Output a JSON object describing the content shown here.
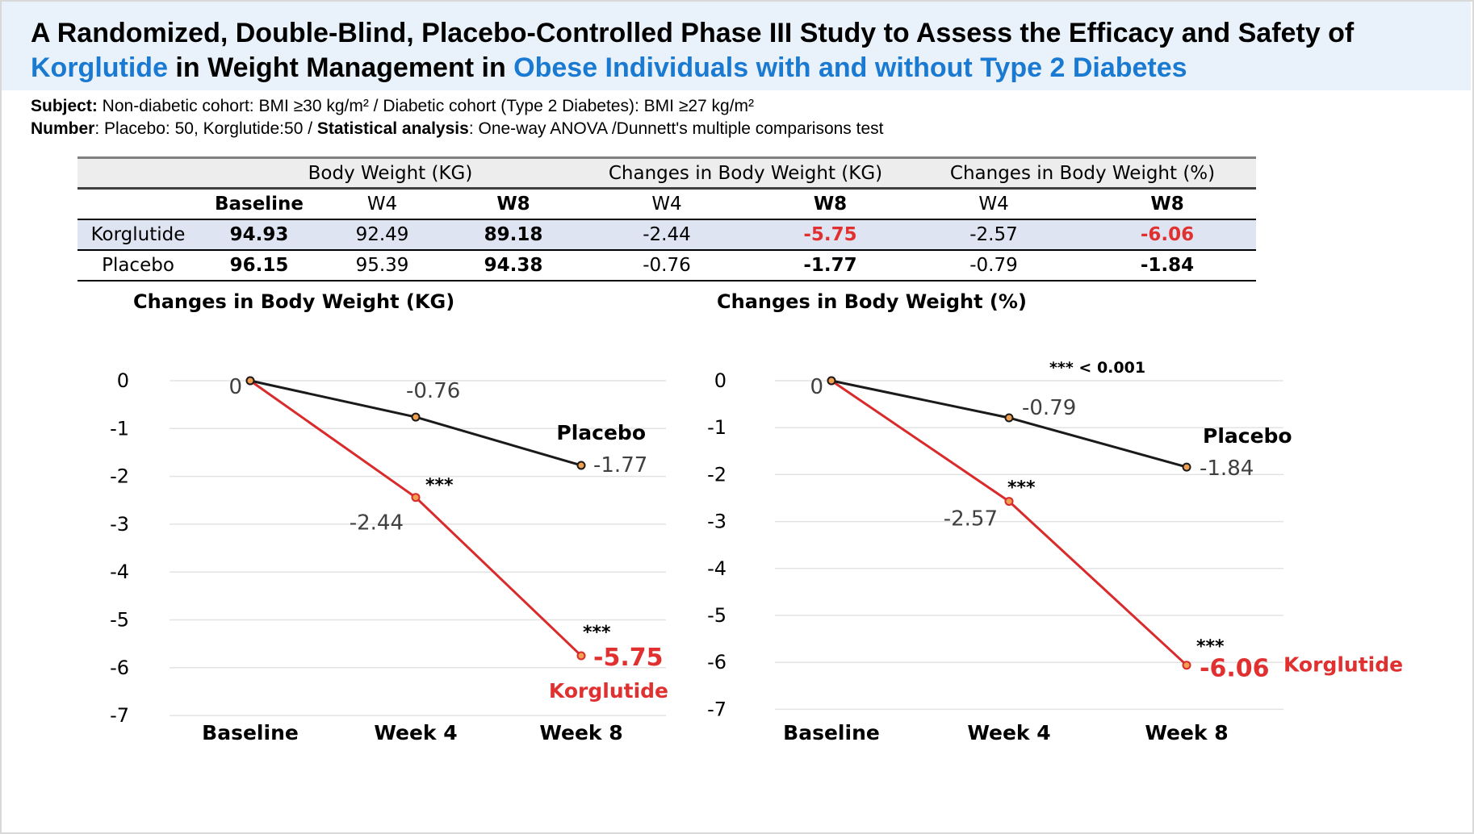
{
  "title": {
    "line1": "A Randomized, Double-Blind, Placebo-Controlled Phase III Study to Assess the Efficacy and Safety of",
    "line2_drug": "Korglutide",
    "line2_mid": " in Weight Management in ",
    "line2_pop": "Obese Individuals with and without Type 2 Diabetes"
  },
  "info": {
    "subject_label": "Subject:",
    "subject_text": " Non-diabetic cohort: BMI ≥30 kg/m² / Diabetic cohort (Type 2 Diabetes): BMI ≥27 kg/m²",
    "number_label": "Number",
    "number_text": ": Placebo: 50, Korglutide:50     /   ",
    "stat_label": "Statistical analysis",
    "stat_text": ": One-way ANOVA /Dunnett's multiple comparisons test"
  },
  "table": {
    "groups": [
      "Body Weight (KG)",
      "Changes in Body Weight (KG)",
      "Changes in Body Weight (%)"
    ],
    "subheaders": [
      "Baseline",
      "W4",
      "W8",
      "W4",
      "W8",
      "W4",
      "W8"
    ],
    "rows": [
      {
        "name": "Korglutide",
        "values": [
          "94.93",
          "92.49",
          "89.18",
          "-2.44",
          "-5.75",
          "-2.57",
          "-6.06"
        ]
      },
      {
        "name": "Placebo",
        "values": [
          "96.15",
          "95.39",
          "94.38",
          "-0.76",
          "-1.77",
          "-0.79",
          "-1.84"
        ]
      }
    ]
  },
  "colors": {
    "korglutide": "#d92b2b",
    "placebo": "#1a1a1a",
    "accent": "#1a7ad1",
    "marker_fill": "#f0a050"
  },
  "significance_note": "*** < 0.001",
  "chart_data": [
    {
      "type": "line",
      "title": "Changes in Body Weight (KG)",
      "categories": [
        "Baseline",
        "Week 4",
        "Week 8"
      ],
      "ylim": [
        -7,
        0
      ],
      "yticks": [
        "0",
        "-1",
        "-2",
        "-3",
        "-4",
        "-5",
        "-6",
        "-7"
      ],
      "grid": true,
      "series": [
        {
          "name": "Placebo",
          "values": [
            0,
            -0.76,
            -1.77
          ],
          "labels": [
            "0",
            "-0.76",
            "-1.77"
          ],
          "stars": [
            "",
            "",
            ""
          ]
        },
        {
          "name": "Korglutide",
          "values": [
            0,
            -2.44,
            -5.75
          ],
          "labels": [
            "",
            "-2.44",
            "-5.75"
          ],
          "stars": [
            "",
            "***",
            "***"
          ]
        }
      ]
    },
    {
      "type": "line",
      "title": "Changes in Body Weight (%)",
      "categories": [
        "Baseline",
        "Week 4",
        "Week 8"
      ],
      "ylim": [
        -7,
        0
      ],
      "yticks": [
        "0",
        "-1",
        "-2",
        "-3",
        "-4",
        "-5",
        "-6",
        "-7"
      ],
      "grid": true,
      "series": [
        {
          "name": "Placebo",
          "values": [
            0,
            -0.79,
            -1.84
          ],
          "labels": [
            "0",
            "-0.79",
            "-1.84"
          ],
          "stars": [
            "",
            "",
            ""
          ]
        },
        {
          "name": "Korglutide",
          "values": [
            0,
            -2.57,
            -6.06
          ],
          "labels": [
            "",
            "-2.57",
            "-6.06"
          ],
          "stars": [
            "",
            "***",
            "***"
          ]
        }
      ]
    }
  ]
}
